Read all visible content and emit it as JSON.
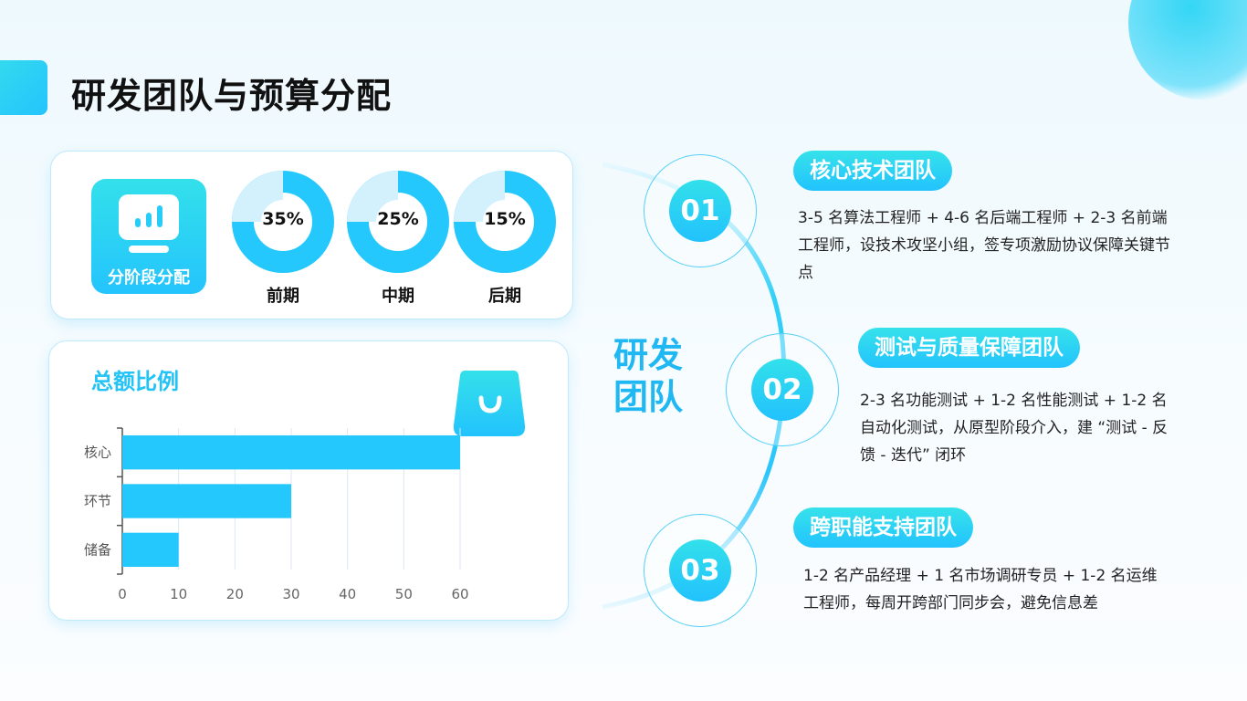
{
  "title": "研发团队与预算分配",
  "stage_card": {
    "tile_label": "分阶段分配",
    "tile_icon": "monitor-chart-icon",
    "stages": [
      {
        "label": "前期",
        "percent_text": "35%",
        "percent": 35
      },
      {
        "label": "中期",
        "percent_text": "25%",
        "percent": 25
      },
      {
        "label": "后期",
        "percent_text": "15%",
        "percent": 15
      }
    ],
    "colors": {
      "main": "#24c8fd",
      "track": "#d2f1fc"
    }
  },
  "chart_data": {
    "type": "bar",
    "orientation": "horizontal",
    "title": "总额比例",
    "categories": [
      "核心",
      "环节",
      "储备"
    ],
    "values": [
      60,
      30,
      10
    ],
    "xlim": [
      0,
      60
    ],
    "xticks": [
      "0",
      "10",
      "20",
      "30",
      "40",
      "50",
      "60"
    ],
    "grid": true,
    "color": "#24c8fd"
  },
  "bag_icon": "shopping-bag-icon",
  "team_diagram": {
    "center_label": "研发\n团队",
    "center_line1": "研发",
    "center_line2": "团队",
    "teams": [
      {
        "num": "01",
        "name": "核心技术团队",
        "desc": "3-5 名算法工程师 + 4-6 名后端工程师 + 2-3 名前端工程师，设技术攻坚小组，签专项激励协议保障关键节点"
      },
      {
        "num": "02",
        "name": "测试与质量保障团队",
        "desc": "2-3 名功能测试 + 1-2 名性能测试 + 1-2 名自动化测试，从原型阶段介入，建 “测试 - 反馈 - 迭代” 闭环"
      },
      {
        "num": "03",
        "name": "跨职能支持团队",
        "desc": "1-2 名产品经理 + 1 名市场调研专员 + 1-2 名运维工程师，每周开跨部门同步会，避免信息差"
      }
    ]
  }
}
